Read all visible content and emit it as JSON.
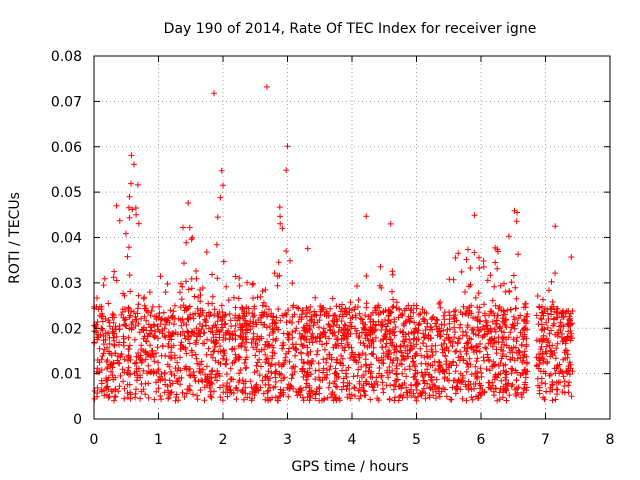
{
  "chart_data": {
    "type": "scatter",
    "title": "Day 190 of 2014, Rate Of TEC Index for receiver igne",
    "xlabel": "GPS time / hours",
    "ylabel": "ROTI / TECUs",
    "xlim": [
      0,
      8
    ],
    "ylim": [
      0,
      0.08
    ],
    "x_ticks": [
      "0",
      "1",
      "2",
      "3",
      "4",
      "5",
      "6",
      "7",
      "8"
    ],
    "y_ticks": [
      "0",
      "0.01",
      "0.02",
      "0.03",
      "0.04",
      "0.05",
      "0.06",
      "0.07",
      "0.08"
    ],
    "grid": true,
    "marker": "+",
    "color": "#ff0000",
    "series": [
      {
        "name": "ROTI",
        "x_range": [
          0,
          7.42
        ],
        "baseline_min": 0.004,
        "baseline_max": 0.025,
        "peaks": [
          {
            "x": 1.86,
            "y": 0.0718
          },
          {
            "x": 2.68,
            "y": 0.0732
          },
          {
            "x": 3.0,
            "y": 0.0601
          },
          {
            "x": 2.98,
            "y": 0.0548
          },
          {
            "x": 0.58,
            "y": 0.0581
          },
          {
            "x": 0.62,
            "y": 0.0561
          },
          {
            "x": 0.68,
            "y": 0.0516
          },
          {
            "x": 0.55,
            "y": 0.049
          },
          {
            "x": 0.65,
            "y": 0.0465
          },
          {
            "x": 0.35,
            "y": 0.047
          },
          {
            "x": 0.4,
            "y": 0.0437
          },
          {
            "x": 1.46,
            "y": 0.0476
          },
          {
            "x": 1.38,
            "y": 0.0422
          },
          {
            "x": 1.98,
            "y": 0.0547
          },
          {
            "x": 2.0,
            "y": 0.0515
          },
          {
            "x": 1.96,
            "y": 0.0488
          },
          {
            "x": 1.92,
            "y": 0.0445
          },
          {
            "x": 2.88,
            "y": 0.0467
          },
          {
            "x": 2.92,
            "y": 0.042
          },
          {
            "x": 4.22,
            "y": 0.0447
          },
          {
            "x": 4.6,
            "y": 0.043
          },
          {
            "x": 5.9,
            "y": 0.0449
          },
          {
            "x": 6.52,
            "y": 0.0459
          },
          {
            "x": 6.56,
            "y": 0.0455
          },
          {
            "x": 7.15,
            "y": 0.0425
          },
          {
            "x": 7.4,
            "y": 0.0357
          }
        ],
        "envelope": [
          [
            0.0,
            0.026
          ],
          [
            0.1,
            0.028
          ],
          [
            0.25,
            0.039
          ],
          [
            0.35,
            0.047
          ],
          [
            0.45,
            0.035
          ],
          [
            0.55,
            0.052
          ],
          [
            0.65,
            0.058
          ],
          [
            0.75,
            0.03
          ],
          [
            0.85,
            0.027
          ],
          [
            1.0,
            0.036
          ],
          [
            1.1,
            0.029
          ],
          [
            1.2,
            0.036
          ],
          [
            1.3,
            0.032
          ],
          [
            1.45,
            0.047
          ],
          [
            1.6,
            0.033
          ],
          [
            1.75,
            0.04
          ],
          [
            1.85,
            0.034
          ],
          [
            1.95,
            0.055
          ],
          [
            2.05,
            0.036
          ],
          [
            2.2,
            0.04
          ],
          [
            2.3,
            0.026
          ],
          [
            2.45,
            0.035
          ],
          [
            2.6,
            0.03
          ],
          [
            2.75,
            0.028
          ],
          [
            2.9,
            0.047
          ],
          [
            3.0,
            0.06
          ],
          [
            3.1,
            0.036
          ],
          [
            3.2,
            0.025
          ],
          [
            3.35,
            0.043
          ],
          [
            3.5,
            0.025
          ],
          [
            3.65,
            0.027
          ],
          [
            3.8,
            0.027
          ],
          [
            3.9,
            0.035
          ],
          [
            4.0,
            0.03
          ],
          [
            4.2,
            0.035
          ],
          [
            4.35,
            0.029
          ],
          [
            4.55,
            0.04
          ],
          [
            4.7,
            0.028
          ],
          [
            4.85,
            0.024
          ],
          [
            5.0,
            0.028
          ],
          [
            5.15,
            0.022
          ],
          [
            5.3,
            0.03
          ],
          [
            5.45,
            0.029
          ],
          [
            5.6,
            0.038
          ],
          [
            5.75,
            0.035
          ],
          [
            5.9,
            0.045
          ],
          [
            6.05,
            0.035
          ],
          [
            6.25,
            0.04
          ],
          [
            6.4,
            0.042
          ],
          [
            6.55,
            0.046
          ],
          [
            6.65,
            0.028
          ],
          [
            6.75,
            0.012
          ],
          [
            6.88,
            0.03
          ],
          [
            7.0,
            0.03
          ],
          [
            7.1,
            0.035
          ],
          [
            7.2,
            0.037
          ],
          [
            7.3,
            0.022
          ],
          [
            7.42,
            0.025
          ]
        ],
        "gaps": [
          [
            6.66,
            6.86
          ]
        ]
      }
    ]
  }
}
